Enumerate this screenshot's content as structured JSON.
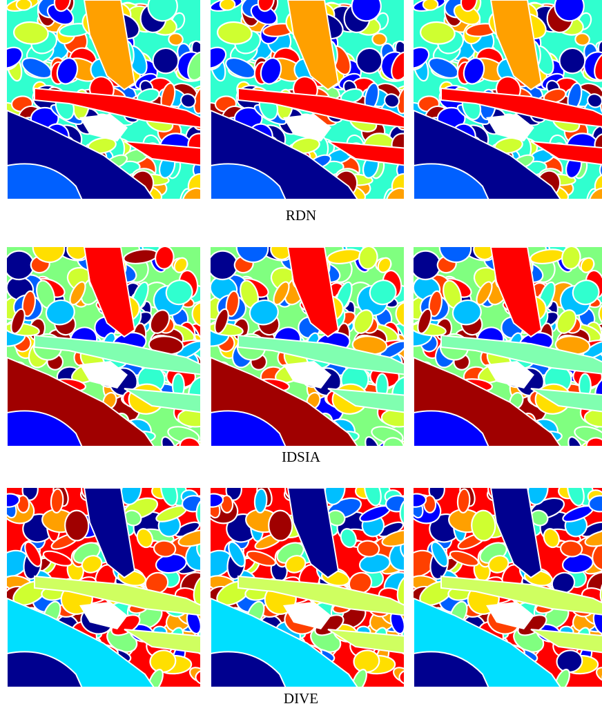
{
  "rows": [
    {
      "label": "RDN"
    },
    {
      "label": "IDSIA"
    },
    {
      "label": "DIVE"
    }
  ]
}
